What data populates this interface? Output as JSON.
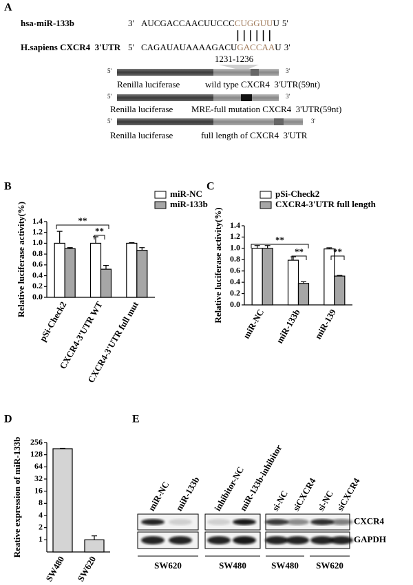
{
  "panel_labels": [
    "A",
    "B",
    "C",
    "D",
    "E"
  ],
  "sequences": {
    "mirna_name": "hsa-miR-133b",
    "mirna_end_left": "3'",
    "mirna_seq": "AUCGACCAACUUCCC",
    "mirna_seed": "CUGGUU",
    "mirna_tail": "U",
    "mirna_end_right": "5'",
    "target_name": "H.sapiens CXCR4  3'UTR",
    "target_end_left": "5'",
    "target_seq": "CAGAUAUAAAAGACU",
    "target_site": "GACCAA",
    "target_tail": "U",
    "target_end_right": "3'",
    "site_position": "1231-1236"
  },
  "constructs": [
    {
      "end_left": "5'",
      "end_right": "3'",
      "reporter": "Renilla luciferase",
      "insert": "wild type CXCR4  3'UTR(59nt)"
    },
    {
      "end_left": "5'",
      "end_right": "3'",
      "reporter": "Renilla luciferase",
      "insert": "MRE-full mutation CXCR4  3'UTR(59nt)"
    },
    {
      "end_left": "5'",
      "end_right": "3'",
      "reporter": "Renilla luciferase",
      "insert": "full length of CXCR4  3'UTR"
    }
  ],
  "chart_data": [
    {
      "type": "bar",
      "y_label": "Relative luciferase activity(%)",
      "categories": [
        "pSi-Check2",
        "CXCR4-3'UTR WT",
        "CXCR4-3'UTR full mut"
      ],
      "series": [
        {
          "name": "miR-NC",
          "color": "#ffffff",
          "values": [
            1.0,
            1.0,
            1.0
          ],
          "errors": [
            0.22,
            0.12,
            0.01
          ]
        },
        {
          "name": "miR-133b",
          "color": "#a6a6a6",
          "values": [
            0.9,
            0.52,
            0.87
          ],
          "errors": [
            0.02,
            0.07,
            0.05
          ]
        }
      ],
      "ylim": [
        0,
        1.4
      ],
      "yticks": [
        {
          "value": 0,
          "label": "0.0"
        },
        0.2,
        0.4,
        0.6,
        0.8,
        {
          "value": 1,
          "label": "1.0"
        },
        1.2,
        1.4
      ],
      "annotations": [
        "**",
        "**"
      ],
      "legend": true
    },
    {
      "type": "bar",
      "y_label": "Relative luciferase activity(%)",
      "categories": [
        "miR-NC",
        "miR-133b",
        "miR-139"
      ],
      "series": [
        {
          "name": "pSi-Check2",
          "color": "#ffffff",
          "values": [
            1.0,
            0.79,
            0.99
          ],
          "errors": [
            0.05,
            0.06,
            0.02
          ]
        },
        {
          "name": "CXCR4-3'UTR full length",
          "color": "#a6a6a6",
          "values": [
            1.0,
            0.38,
            0.51
          ],
          "errors": [
            0.05,
            0.03,
            0.01
          ]
        }
      ],
      "ylim": [
        0,
        1.4
      ],
      "yticks": [
        {
          "value": 0,
          "label": "0.0"
        },
        0.2,
        0.4,
        0.6,
        0.8,
        {
          "value": 1,
          "label": "1.0"
        },
        1.2,
        1.4
      ],
      "annotations": [
        "**",
        "**",
        "**"
      ],
      "legend": true
    },
    {
      "type": "bar",
      "y_label": "Reative expression of miR-133b",
      "categories": [
        "SW480",
        "SW620"
      ],
      "color": "#d4d4d4",
      "values": [
        180,
        1.0
      ],
      "errors": [
        4,
        0.25
      ],
      "log_base": 2,
      "ylim": [
        0.5,
        256
      ],
      "yticks": [
        1,
        2,
        4,
        8,
        16,
        32,
        64,
        128,
        256
      ],
      "legend": false
    }
  ],
  "western_blot": {
    "lanes": [
      "miR-NC",
      "miR-133b",
      "inhibitor-NC",
      "miR-133b-inhibitor",
      "si-NC",
      "siCXCR4",
      "si-NC",
      "siCXCR4"
    ],
    "proteins": [
      "CXCR4",
      "GAPDH"
    ],
    "cell_lines": [
      "SW620",
      "SW480",
      "SW480",
      "SW620"
    ]
  }
}
